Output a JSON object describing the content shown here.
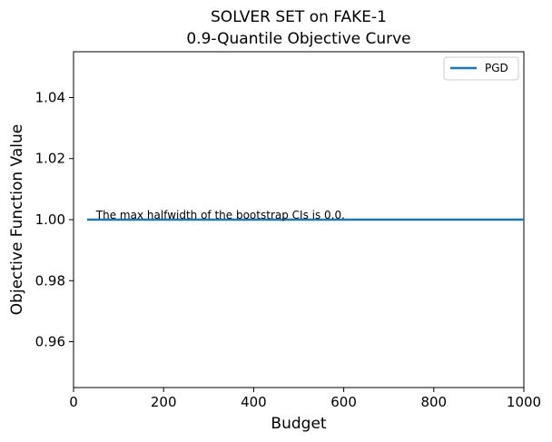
{
  "chart_data": {
    "type": "line",
    "title": [
      "SOLVER SET on FAKE-1",
      "0.9-Quantile Objective Curve"
    ],
    "xlabel": "Budget",
    "ylabel": "Objective Function Value",
    "xlim": [
      0,
      1000
    ],
    "ylim": [
      0.945,
      1.055
    ],
    "xticks": [
      0,
      200,
      400,
      600,
      800,
      1000
    ],
    "xtick_labels": [
      "0",
      "200",
      "400",
      "600",
      "800",
      "1000"
    ],
    "yticks": [
      0.96,
      0.98,
      1.0,
      1.02,
      1.04
    ],
    "ytick_labels": [
      "0.96",
      "0.98",
      "1.00",
      "1.02",
      "1.04"
    ],
    "grid": false,
    "legend_position": "top-right",
    "series": [
      {
        "name": "PGD",
        "color": "#1f77b4",
        "x": [
          30,
          1000
        ],
        "y": [
          1.0,
          1.0
        ]
      }
    ],
    "annotation": {
      "text": "The max halfwidth of the bootstrap CIs is 0.0.",
      "x": 50,
      "y": 1.0
    }
  }
}
